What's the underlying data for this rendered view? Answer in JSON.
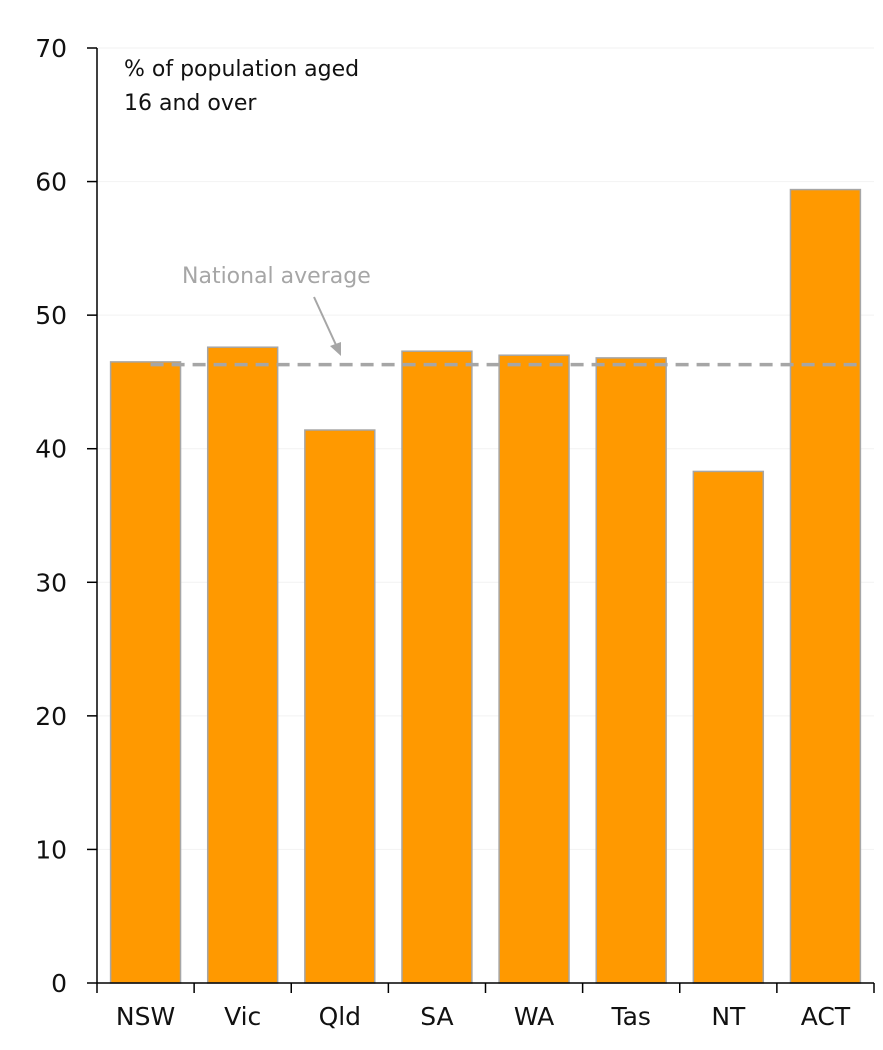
{
  "chart_data": {
    "type": "bar",
    "categories": [
      "NSW",
      "Vic",
      "Qld",
      "SA",
      "WA",
      "Tas",
      "NT",
      "ACT"
    ],
    "values": [
      46.5,
      47.6,
      41.4,
      47.3,
      47.0,
      46.8,
      38.3,
      59.4
    ],
    "ylabel_lines": [
      "% of population aged",
      "16 and over"
    ],
    "ylim": [
      0,
      70
    ],
    "yticks": [
      0,
      10,
      20,
      30,
      40,
      50,
      60,
      70
    ],
    "grid": true,
    "reference_line": {
      "label": "National average",
      "value": 46.3
    },
    "colors": {
      "bar": "#ff9900",
      "bar_border": "#a6a6a6",
      "reference": "#a6a6a6",
      "grid": "#f2f2f2",
      "axis": "#000000"
    }
  }
}
